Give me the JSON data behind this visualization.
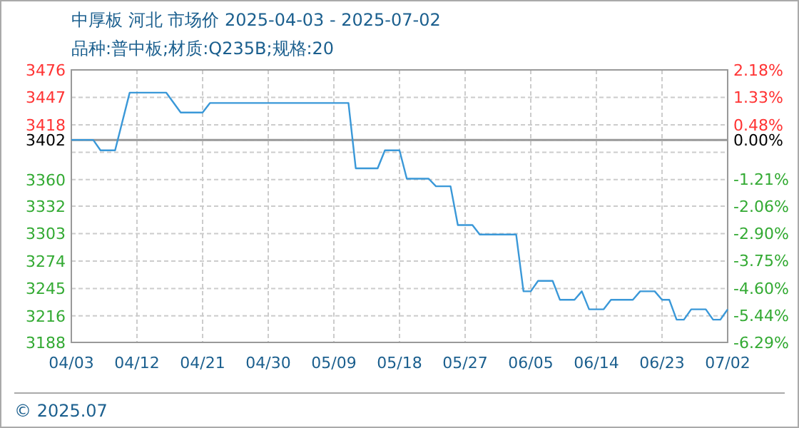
{
  "chart_data": {
    "type": "line",
    "title": "中厚板 河北 市场价 2025-04-03 - 2025-07-02",
    "subtitle": "品种:普中板;材质:Q235B;规格:20",
    "x": [
      "2025-04-03",
      "2025-04-06",
      "2025-04-07",
      "2025-04-09",
      "2025-04-11",
      "2025-04-16",
      "2025-04-18",
      "2025-04-21",
      "2025-04-22",
      "2025-05-11",
      "2025-05-12",
      "2025-05-15",
      "2025-05-16",
      "2025-05-18",
      "2025-05-19",
      "2025-05-22",
      "2025-05-23",
      "2025-05-25",
      "2025-05-26",
      "2025-05-28",
      "2025-05-29",
      "2025-06-03",
      "2025-06-04",
      "2025-06-05",
      "2025-06-06",
      "2025-06-08",
      "2025-06-09",
      "2025-06-11",
      "2025-06-12",
      "2025-06-13",
      "2025-06-15",
      "2025-06-16",
      "2025-06-19",
      "2025-06-20",
      "2025-06-22",
      "2025-06-23",
      "2025-06-24",
      "2025-06-25",
      "2025-06-26",
      "2025-06-27",
      "2025-06-29",
      "2025-06-30",
      "2025-07-01",
      "2025-07-02"
    ],
    "series": [
      {
        "color": "#3a98d8",
        "values": [
          3402,
          3402,
          3391,
          3391,
          3452,
          3452,
          3431,
          3431,
          3441,
          3441,
          3372,
          3372,
          3391,
          3391,
          3361,
          3361,
          3353,
          3353,
          3312,
          3312,
          3302,
          3302,
          3242,
          3242,
          3253,
          3253,
          3233,
          3233,
          3242,
          3223,
          3223,
          3233,
          3233,
          3242,
          3242,
          3233,
          3233,
          3212,
          3212,
          3223,
          3223,
          3212,
          3212,
          3223
        ]
      }
    ],
    "xlim": [
      "2025-04-03",
      "2025-07-02"
    ],
    "xticks": [
      {
        "value": "2025-04-03",
        "label": "04/03"
      },
      {
        "value": "2025-04-12",
        "label": "04/12"
      },
      {
        "value": "2025-04-21",
        "label": "04/21"
      },
      {
        "value": "2025-04-30",
        "label": "04/30"
      },
      {
        "value": "2025-05-09",
        "label": "05/09"
      },
      {
        "value": "2025-05-18",
        "label": "05/18"
      },
      {
        "value": "2025-05-27",
        "label": "05/27"
      },
      {
        "value": "2025-06-05",
        "label": "06/05"
      },
      {
        "value": "2025-06-14",
        "label": "06/14"
      },
      {
        "value": "2025-06-23",
        "label": "06/23"
      },
      {
        "value": "2025-07-02",
        "label": "07/02"
      }
    ],
    "ylim": [
      3188,
      3476
    ],
    "yticks": [
      3476,
      3447,
      3418,
      3402,
      {
        "value": 3389,
        "label": null
      },
      3360,
      3332,
      3303,
      3274,
      3245,
      3216,
      3188
    ],
    "y2lim": [
      -6.29,
      2.18
    ],
    "y2ticks": [
      {
        "value": 2.18,
        "label": "2.18%"
      },
      {
        "value": 1.33,
        "label": "1.33%"
      },
      {
        "value": 0.48,
        "label": "0.48%"
      },
      {
        "value": 0,
        "label": "0.00%"
      },
      {
        "value": -1.21,
        "label": "-1.21%"
      },
      {
        "value": -2.06,
        "label": "-2.06%"
      },
      {
        "value": -2.9,
        "label": "-2.90%"
      },
      {
        "value": -3.75,
        "label": "-3.75%"
      },
      {
        "value": -4.6,
        "label": "-4.60%"
      },
      {
        "value": -5.44,
        "label": "-5.44%"
      },
      {
        "value": -6.29,
        "label": "-6.29%"
      }
    ],
    "ref_lines": [
      {
        "axis": "y",
        "value": 3402,
        "color": "#999999"
      }
    ],
    "grid": true,
    "annotations": [
      "© 2025.07"
    ]
  }
}
